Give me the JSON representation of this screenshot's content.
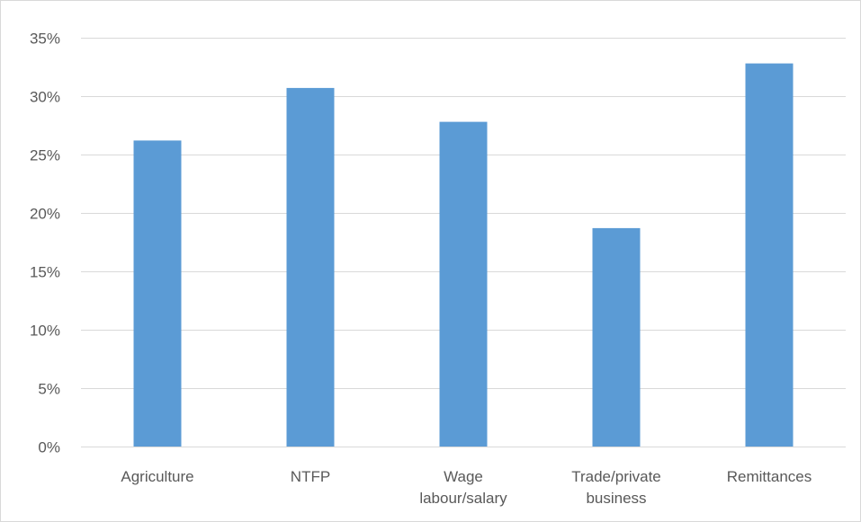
{
  "chart_data": {
    "type": "bar",
    "title": "",
    "xlabel": "",
    "ylabel": "",
    "categories": [
      [
        "Agriculture"
      ],
      [
        "NTFP"
      ],
      [
        "Wage",
        "labour/salary"
      ],
      [
        "Trade/private",
        "business"
      ],
      [
        "Remittances"
      ]
    ],
    "values": [
      0.262,
      0.307,
      0.278,
      0.187,
      0.328
    ],
    "ylim": [
      0,
      0.35
    ],
    "yticks": [
      0,
      0.05,
      0.1,
      0.15,
      0.2,
      0.25,
      0.3,
      0.35
    ],
    "ytick_labels": [
      "0%",
      "5%",
      "10%",
      "15%",
      "20%",
      "25%",
      "30%",
      "35%"
    ],
    "grid": true,
    "legend": "none",
    "bar_color": "#5b9bd5"
  }
}
